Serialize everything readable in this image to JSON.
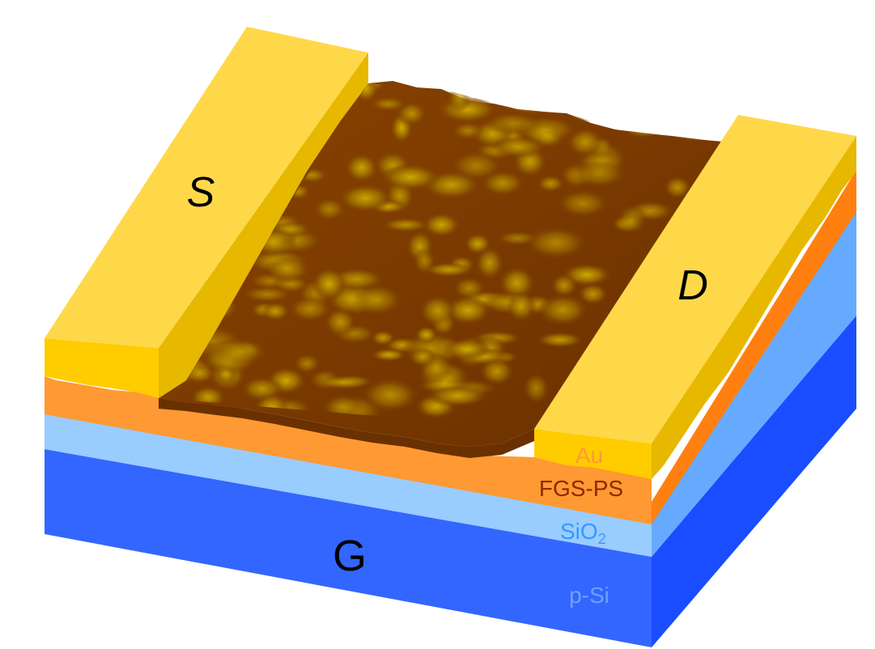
{
  "labels": {
    "source": "S",
    "drain": "D",
    "gate": "G",
    "au": "Au",
    "fgs_ps": "FGS-PS",
    "sio2_main": "SiO",
    "sio2_sub": "2",
    "p_si": "p-Si"
  },
  "colors": {
    "silicon_front": "#3366ff",
    "silicon_side": "#1a4dff",
    "oxide_front": "#99ccff",
    "oxide_side": "#66aaff",
    "film_front": "#ff9933",
    "film_side": "#ff8010",
    "gold_top": "#ffd84a",
    "gold_front": "#ffcc00",
    "gold_side": "#e6b800",
    "afm_dark": "#7a3a00",
    "afm_light": "#c8a000",
    "label_au": "#ff9933",
    "label_fgs": "#8b2a00",
    "label_sio2": "#3399ff",
    "label_psi": "#6fa0ff",
    "letter": "#000000"
  }
}
